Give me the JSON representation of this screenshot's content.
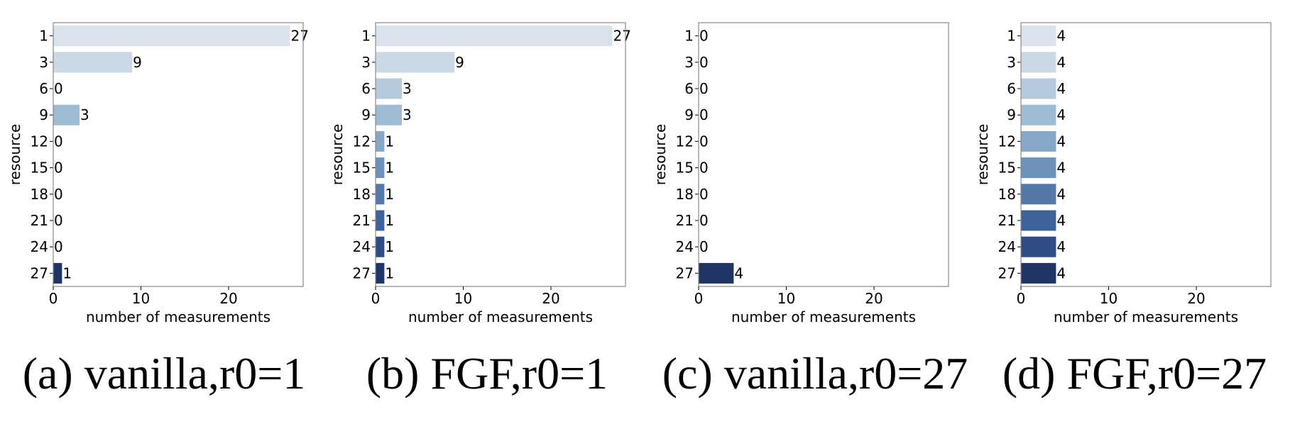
{
  "chart_data": [
    {
      "type": "bar",
      "orientation": "horizontal",
      "caption": "(a) vanilla,r0=1",
      "categories": [
        "1",
        "3",
        "6",
        "9",
        "12",
        "15",
        "18",
        "21",
        "24",
        "27"
      ],
      "values": [
        27,
        9,
        0,
        3,
        0,
        0,
        0,
        0,
        0,
        1
      ],
      "xlabel": "number of measurements",
      "ylabel": "resource",
      "xlim": [
        0,
        28.5
      ],
      "xticks": [
        "0",
        "10",
        "20"
      ],
      "grid": false
    },
    {
      "type": "bar",
      "orientation": "horizontal",
      "caption": "(b) FGF,r0=1",
      "categories": [
        "1",
        "3",
        "6",
        "9",
        "12",
        "15",
        "18",
        "21",
        "24",
        "27"
      ],
      "values": [
        27,
        9,
        3,
        3,
        1,
        1,
        1,
        1,
        1,
        1
      ],
      "xlabel": "number of measurements",
      "ylabel": "resource",
      "xlim": [
        0,
        28.5
      ],
      "xticks": [
        "0",
        "10",
        "20"
      ],
      "grid": false
    },
    {
      "type": "bar",
      "orientation": "horizontal",
      "caption": "(c) vanilla,r0=27",
      "categories": [
        "1",
        "3",
        "6",
        "9",
        "12",
        "15",
        "18",
        "21",
        "24",
        "27"
      ],
      "values": [
        0,
        0,
        0,
        0,
        0,
        0,
        0,
        0,
        0,
        4
      ],
      "xlabel": "number of measurements",
      "ylabel": "resource",
      "xlim": [
        0,
        28.5
      ],
      "xticks": [
        "0",
        "10",
        "20"
      ],
      "grid": false
    },
    {
      "type": "bar",
      "orientation": "horizontal",
      "caption": "(d) FGF,r0=27",
      "categories": [
        "1",
        "3",
        "6",
        "9",
        "12",
        "15",
        "18",
        "21",
        "24",
        "27"
      ],
      "values": [
        4,
        4,
        4,
        4,
        4,
        4,
        4,
        4,
        4,
        4
      ],
      "xlabel": "number of measurements",
      "ylabel": "resource",
      "xlim": [
        0,
        28.5
      ],
      "xticks": [
        "0",
        "10",
        "20"
      ],
      "grid": false
    }
  ],
  "colors": [
    "#dae3ed",
    "#cbd8e6",
    "#b6cadc",
    "#9fbbd4",
    "#85a8c9",
    "#6c92b9",
    "#5479a8",
    "#3d6498",
    "#2d4d84",
    "#1f3565"
  ]
}
